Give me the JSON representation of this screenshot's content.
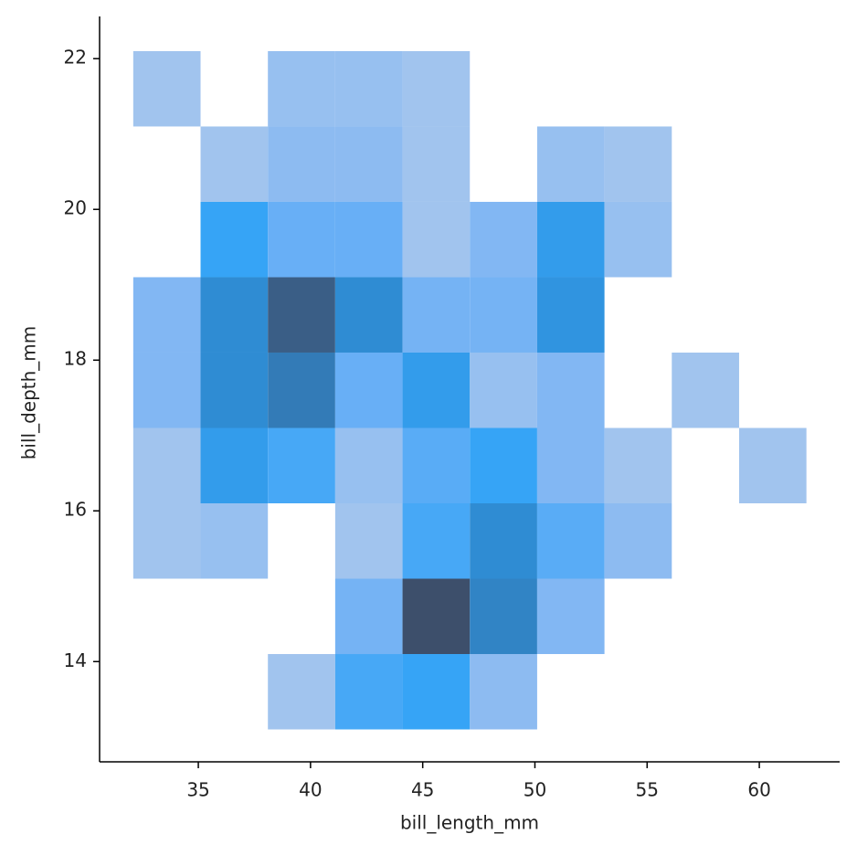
{
  "chart_data": {
    "type": "hist2d",
    "x_label": "bill_length_mm",
    "y_label": "bill_depth_mm",
    "x_bins": [
      32.1,
      35.1,
      38.1,
      41.1,
      44.1,
      47.1,
      50.1,
      53.1,
      56.1,
      59.1,
      62.1
    ],
    "y_bins": [
      13.1,
      14.1,
      15.1,
      16.1,
      17.1,
      18.1,
      19.1,
      20.1,
      21.1,
      22.1
    ],
    "counts": [
      [
        0,
        0,
        1,
        8,
        9,
        3,
        0,
        0,
        0,
        0
      ],
      [
        0,
        0,
        0,
        5,
        17,
        13,
        4,
        0,
        0,
        0
      ],
      [
        1,
        2,
        0,
        1,
        8,
        12,
        7,
        3,
        0,
        0
      ],
      [
        1,
        10,
        8,
        2,
        7,
        9,
        4,
        1,
        0,
        1
      ],
      [
        4,
        12,
        14,
        6,
        10,
        2,
        4,
        0,
        1,
        0
      ],
      [
        4,
        12,
        16,
        12,
        5,
        5,
        11,
        0,
        0,
        0
      ],
      [
        0,
        9,
        6,
        6,
        1,
        4,
        10,
        2,
        0,
        0
      ],
      [
        0,
        1,
        3,
        3,
        1,
        0,
        2,
        1,
        0,
        0
      ],
      [
        1,
        0,
        2,
        2,
        1,
        0,
        0,
        0,
        0,
        0
      ]
    ],
    "colormap": [
      "#a1c4ee",
      "#86b8f2",
      "#64aef6",
      "#36a4f6",
      "#2e8fd8",
      "#3478b2",
      "#3d4f6b"
    ],
    "xlim": [
      30.6,
      63.58
    ],
    "ylim": [
      12.67,
      22.56
    ],
    "xticks": [
      35,
      40,
      45,
      50,
      55,
      60
    ],
    "yticks": [
      14,
      16,
      18,
      20,
      22
    ],
    "grid": false
  }
}
